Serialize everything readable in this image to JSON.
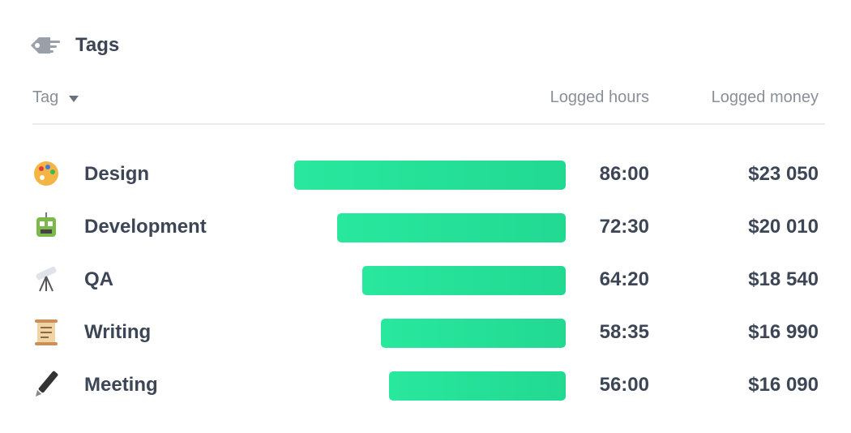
{
  "header": {
    "title": "Tags"
  },
  "columns": {
    "tag": "Tag",
    "hours": "Logged hours",
    "money": "Logged money"
  },
  "rows": [
    {
      "tag": "Design",
      "hours": {
        "value": 86,
        "label": "86:00"
      },
      "money": "$23 050"
    },
    {
      "tag": "Development",
      "hours": {
        "value": 72.5,
        "label": "72:30"
      },
      "money": "$20 010"
    },
    {
      "tag": "QA",
      "hours": {
        "value": 64.333,
        "label": "64:20"
      },
      "money": "$18 540"
    },
    {
      "tag": "Writing",
      "hours": {
        "value": 58.583,
        "label": "58:35"
      },
      "money": "$16 990"
    },
    {
      "tag": "Meeting",
      "hours": {
        "value": 56,
        "label": "56:00"
      },
      "money": "$16 090"
    }
  ]
}
